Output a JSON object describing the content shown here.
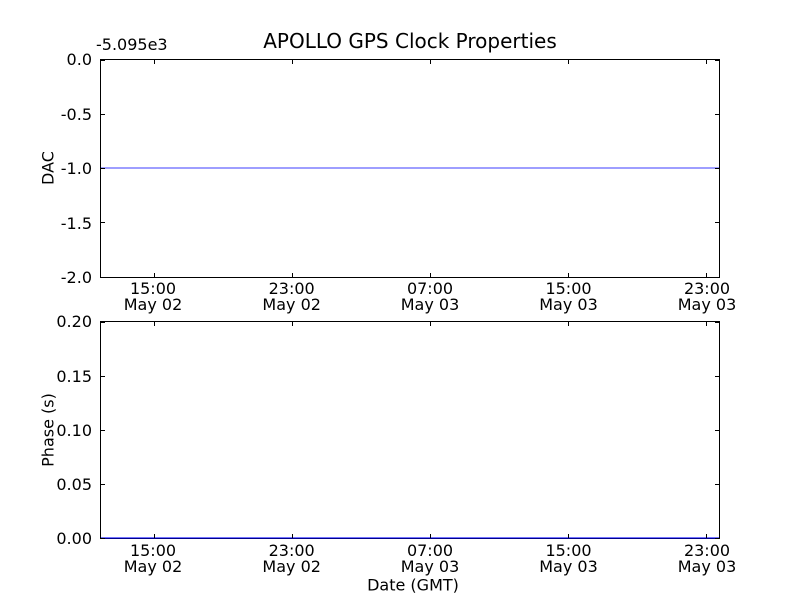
{
  "figure": {
    "title": "APOLLO GPS Clock Properties",
    "xlabel": "Date (GMT)",
    "background_color": "#ffffff",
    "axis_color": "#000000"
  },
  "xticks": [
    {
      "time": "15:00",
      "date": "May 02"
    },
    {
      "time": "23:00",
      "date": "May 02"
    },
    {
      "time": "07:00",
      "date": "May 03"
    },
    {
      "time": "15:00",
      "date": "May 03"
    },
    {
      "time": "23:00",
      "date": "May 03"
    }
  ],
  "chart_data": [
    {
      "type": "line",
      "title": "APOLLO GPS Clock Properties",
      "ylabel": "DAC",
      "y_offset_text": "-5.095e3",
      "ylim": [
        -2.0,
        0.0
      ],
      "yticks": [
        "0.0",
        "-0.5",
        "-1.0",
        "-1.5",
        "-2.0"
      ],
      "xtick_labels": [
        "15:00 May 02",
        "23:00 May 02",
        "07:00 May 03",
        "15:00 May 03",
        "23:00 May 03"
      ],
      "grid": false,
      "legend": "none",
      "series": [
        {
          "name": "DAC",
          "color": "#0000ff",
          "shape": "constant horizontal line spanning full x-range",
          "y_display": -1.0,
          "y_actual_with_offset": -5096.0
        }
      ]
    },
    {
      "type": "line",
      "ylabel": "Phase (s)",
      "xlabel": "Date (GMT)",
      "ylim": [
        0.0,
        0.2
      ],
      "yticks": [
        "0.20",
        "0.15",
        "0.10",
        "0.05",
        "0.00"
      ],
      "xtick_labels": [
        "15:00 May 02",
        "23:00 May 02",
        "07:00 May 03",
        "15:00 May 03",
        "23:00 May 03"
      ],
      "grid": false,
      "legend": "none",
      "series": [
        {
          "name": "Phase",
          "color": "#0000ff",
          "shape": "constant horizontal line along bottom axis (overlaps x-axis spine)",
          "y_display": 0.0
        }
      ]
    }
  ]
}
